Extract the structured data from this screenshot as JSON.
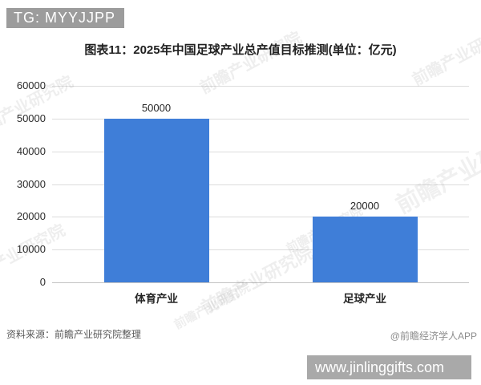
{
  "overlay": {
    "badge_text": "TG: MYYJJPP",
    "badge_bg": "#9c9c9c",
    "site_strip_text": "www.jinlinggifts.com",
    "site_strip_bg": "#a9a9a9"
  },
  "chart": {
    "title": "图表11：2025年中国足球产业总产值目标推测(单位：亿元)",
    "source": "资料来源：前瞻产业研究院整理",
    "credit": "@前瞻经济学人APP",
    "watermark": "前瞻产业研究院"
  },
  "chart_data": {
    "type": "bar",
    "title": "图表11：2025年中国足球产业总产值目标推测(单位：亿元)",
    "categories": [
      "体育产业",
      "足球产业"
    ],
    "values": [
      50000,
      20000
    ],
    "value_labels": [
      "50000",
      "20000"
    ],
    "xlabel": "",
    "ylabel": "",
    "ylim": [
      0,
      60000
    ],
    "yticks": [
      0,
      10000,
      20000,
      30000,
      40000,
      50000,
      60000
    ],
    "ytick_labels": [
      "0",
      "10000",
      "20000",
      "30000",
      "40000",
      "50000",
      "60000"
    ],
    "grid": true,
    "legend": false,
    "bar_color": "#3f7ed8"
  }
}
